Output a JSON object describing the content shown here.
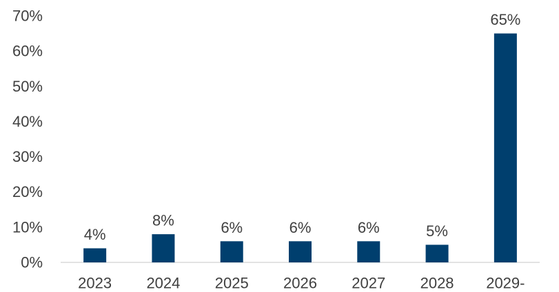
{
  "chart_data": {
    "type": "bar",
    "categories": [
      "2023",
      "2024",
      "2025",
      "2026",
      "2027",
      "2028",
      "2029-"
    ],
    "values": [
      4,
      8,
      6,
      6,
      6,
      5,
      65
    ],
    "data_labels": [
      "4%",
      "8%",
      "6%",
      "6%",
      "6%",
      "5%",
      "65%"
    ],
    "ylim": [
      0,
      70
    ],
    "yticks": [
      0,
      10,
      20,
      30,
      40,
      50,
      60,
      70
    ],
    "ytick_labels": [
      "0%",
      "10%",
      "20%",
      "30%",
      "40%",
      "50%",
      "60%",
      "70%"
    ],
    "title": "",
    "xlabel": "",
    "ylabel": "",
    "grid": false,
    "legend": "none",
    "bar_color": "#003F6E",
    "axis_color": "#D9D9D9",
    "text_color": "#404040"
  }
}
